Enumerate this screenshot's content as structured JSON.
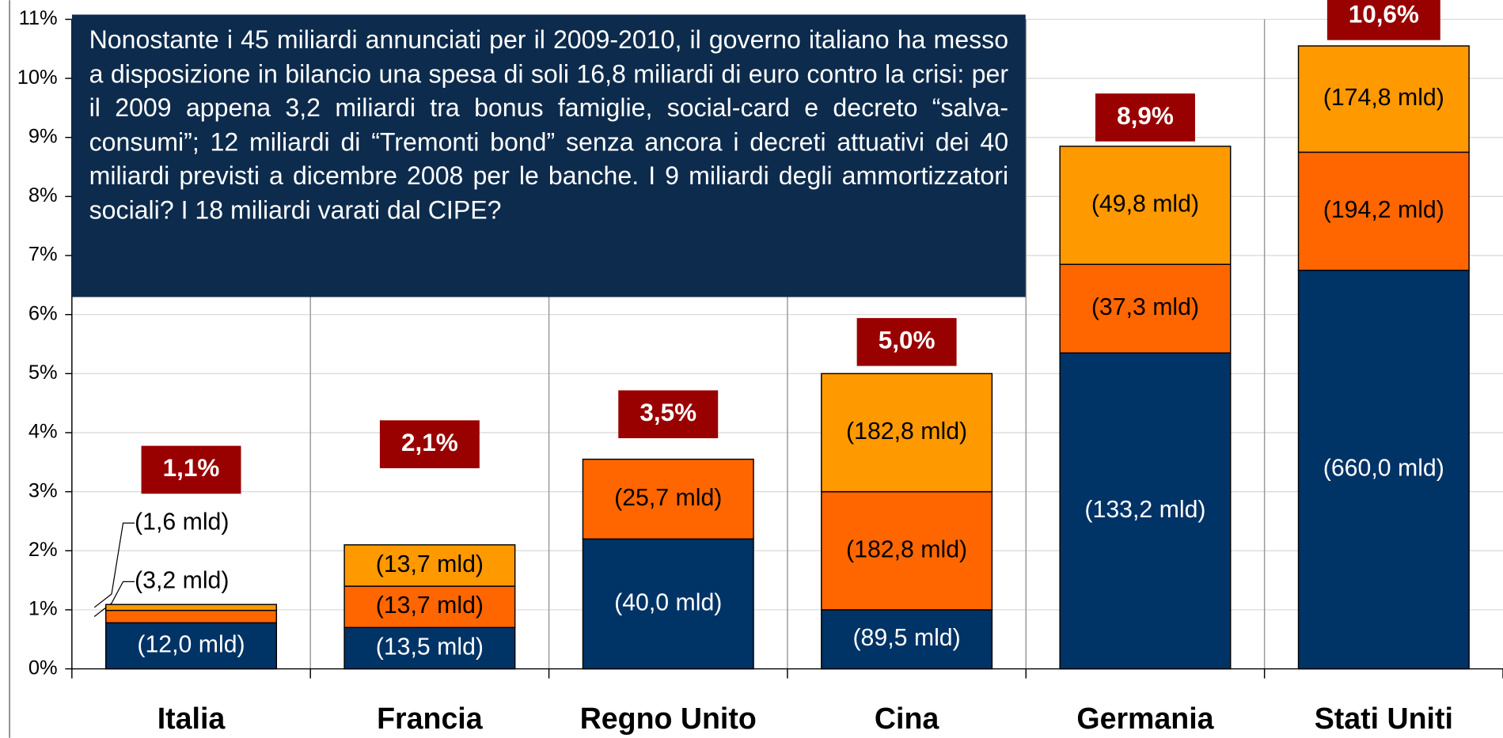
{
  "chart_data": {
    "type": "stacked_bar",
    "annotation": "Nonostante i 45 miliardi annunciati per il 2009-2010, il governo italiano ha messo a disposizione in bilancio una spesa di soli 16,8 miliardi di euro contro la crisi: per il 2009 appena 3,2 miliardi tra bonus famiglie, social-card e decreto “salva-consumi”; 12 miliardi di “Tremonti bond” senza ancora i decreti attuativi dei 40 miliardi previsti a dicembre 2008 per le banche. I 9 miliardi degli ammortizzatori sociali? I 18 miliardi varati dal CIPE?",
    "categories": [
      "Italia",
      "Francia",
      "Regno Unito",
      "Cina",
      "Germania",
      "Stati Uniti"
    ],
    "series": [
      {
        "color": "#003366",
        "values": [
          0.78,
          0.7,
          2.2,
          1.0,
          5.35,
          6.75
        ],
        "value_labels": [
          "(12,0 mld)",
          "(13,5 mld)",
          "(40,0 mld)",
          "(89,5 mld)",
          "(133,2 mld)",
          "(660,0 mld)"
        ]
      },
      {
        "color": "#ff6600",
        "values": [
          0.21,
          0.7,
          1.35,
          2.0,
          1.5,
          2.0
        ],
        "value_labels": [
          "(3,2 mld)",
          "(13,7 mld)",
          "(25,7 mld)",
          "(182,8 mld)",
          "(37,3 mld)",
          "(194,2 mld)"
        ]
      },
      {
        "color": "#ff9900",
        "values": [
          0.1,
          0.7,
          null,
          2.0,
          2.0,
          1.8
        ],
        "value_labels": [
          "(1,6 mld)",
          "(13,7 mld)",
          null,
          "(182,8 mld)",
          "(49,8 mld)",
          "(174,8 mld)"
        ]
      }
    ],
    "totals": {
      "color": "#990000",
      "values": [
        1.1,
        2.1,
        3.5,
        5.0,
        8.9,
        10.6
      ],
      "value_labels": [
        "1,1%",
        "2,1%",
        "3,5%",
        "5,0%",
        "8,9%",
        "10,6%"
      ]
    },
    "ylim": [
      0,
      11
    ],
    "yticks": [
      {
        "value": 0,
        "label": "0%"
      },
      {
        "value": 1,
        "label": "1%"
      },
      {
        "value": 2,
        "label": "2%"
      },
      {
        "value": 3,
        "label": "3%"
      },
      {
        "value": 4,
        "label": "4%"
      },
      {
        "value": 5,
        "label": "5%"
      },
      {
        "value": 6,
        "label": "6%"
      },
      {
        "value": 7,
        "label": "7%"
      },
      {
        "value": 8,
        "label": "8%"
      },
      {
        "value": 9,
        "label": "9%"
      },
      {
        "value": 10,
        "label": "10%"
      },
      {
        "value": 11,
        "label": "11%"
      }
    ],
    "grid": true
  }
}
